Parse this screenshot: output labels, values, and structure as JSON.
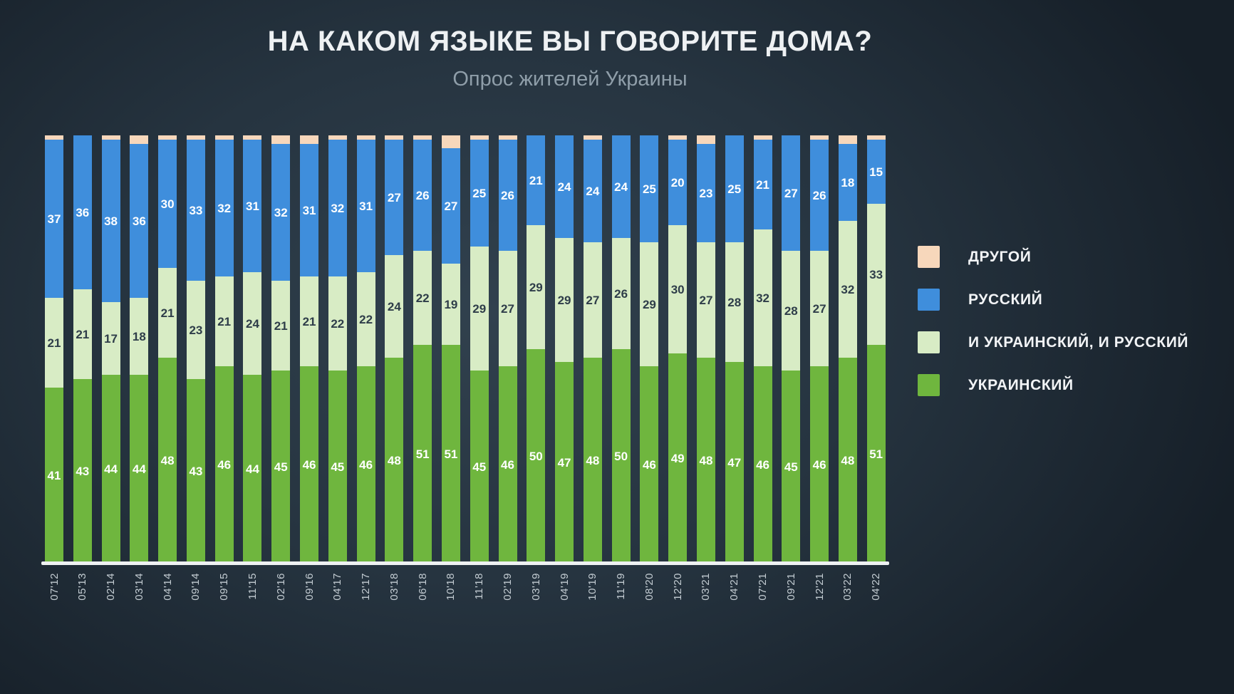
{
  "title": "НА КАКОМ ЯЗЫКЕ ВЫ ГОВОРИТЕ ДОМА?",
  "subtitle": "Опрос жителей Украины",
  "legend": {
    "order_top_to_bottom": [
      "other",
      "russian",
      "both",
      "ukrainian"
    ]
  },
  "chart_data": {
    "type": "bar",
    "stacked": true,
    "unit": "percent",
    "ylim": [
      0,
      100
    ],
    "grid": false,
    "legend_position": "right",
    "value_labels_shown": true,
    "categories": [
      "07'12",
      "05'13",
      "02'14",
      "03'14",
      "04'14",
      "09'14",
      "09'15",
      "11'15",
      "02'16",
      "09'16",
      "04'17",
      "12'17",
      "03'18",
      "06'18",
      "10'18",
      "11'18",
      "02'19",
      "03'19",
      "04'19",
      "10'19",
      "11'19",
      "08'20",
      "12'20",
      "03'21",
      "04'21",
      "07'21",
      "09'21",
      "12'21",
      "03'22",
      "04'22"
    ],
    "series": [
      {
        "id": "ukrainian",
        "name": "УКРАИНСКИЙ",
        "color": "#6fb63e",
        "label_color": "#ffffff",
        "values": [
          41,
          43,
          44,
          44,
          48,
          43,
          46,
          44,
          45,
          46,
          45,
          46,
          48,
          51,
          51,
          45,
          46,
          50,
          47,
          48,
          50,
          46,
          49,
          48,
          47,
          46,
          45,
          46,
          48,
          51
        ]
      },
      {
        "id": "both",
        "name": "И УКРАИНСКИЙ, И РУССКИЙ",
        "color": "#d8ecc5",
        "label_color": "#2e3d49",
        "values": [
          21,
          21,
          17,
          18,
          21,
          23,
          21,
          24,
          21,
          21,
          22,
          22,
          24,
          22,
          19,
          29,
          27,
          29,
          29,
          27,
          26,
          29,
          30,
          27,
          28,
          32,
          28,
          27,
          32,
          33
        ]
      },
      {
        "id": "russian",
        "name": "РУССКИЙ",
        "color": "#3f8edc",
        "label_color": "#ffffff",
        "values": [
          37,
          36,
          38,
          36,
          30,
          33,
          32,
          31,
          32,
          31,
          32,
          31,
          27,
          26,
          27,
          25,
          26,
          21,
          24,
          24,
          24,
          25,
          20,
          23,
          25,
          21,
          27,
          26,
          18,
          15
        ]
      },
      {
        "id": "other",
        "name": "ДРУГОЙ",
        "color": "#f7d7bb",
        "label_color": null,
        "values_not_labeled_in_chart": true,
        "values": [
          1,
          0,
          1,
          2,
          1,
          1,
          1,
          1,
          2,
          2,
          1,
          1,
          1,
          1,
          3,
          1,
          1,
          0,
          0,
          1,
          0,
          0,
          1,
          2,
          0,
          1,
          0,
          1,
          2,
          1
        ]
      }
    ]
  }
}
